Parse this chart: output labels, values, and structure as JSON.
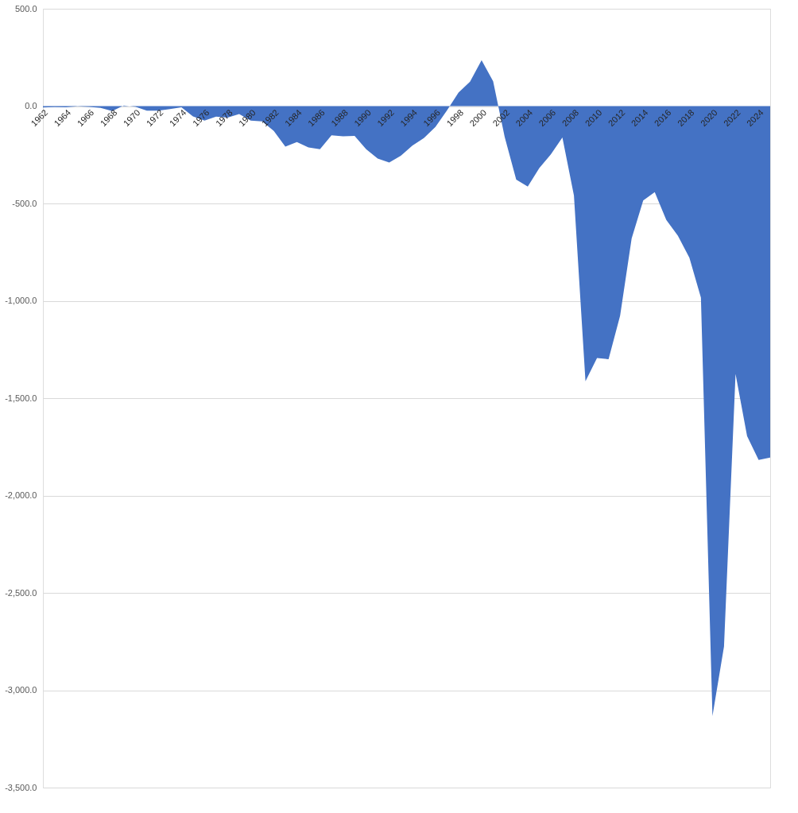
{
  "chart_data": {
    "type": "area",
    "categories": [
      "1962",
      null,
      "1964",
      null,
      "1966",
      null,
      "1968",
      null,
      "1970",
      null,
      "1972",
      null,
      "1974",
      null,
      "1976",
      null,
      "1978",
      null,
      "1980",
      null,
      "1982",
      null,
      "1984",
      null,
      "1986",
      null,
      "1988",
      null,
      "1990",
      null,
      "1992",
      null,
      "1994",
      null,
      "1996",
      null,
      "1998",
      null,
      "2000",
      null,
      "2002",
      null,
      "2004",
      null,
      "2006",
      null,
      "2008",
      null,
      "2010",
      null,
      "2012",
      null,
      "2014",
      null,
      "2016",
      null,
      "2018",
      null,
      "2020",
      null,
      "2022",
      null,
      "2024",
      null
    ],
    "series": [
      {
        "color": "#4472c4",
        "values": [
          -7,
          -5,
          -6,
          -1,
          -4,
          -9,
          -25,
          3,
          -3,
          -23,
          -23,
          -15,
          -6,
          -53,
          -74,
          -54,
          -59,
          -41,
          -74,
          -79,
          -128,
          -208,
          -185,
          -212,
          -221,
          -150,
          -155,
          -153,
          -221,
          -269,
          -290,
          -255,
          -203,
          -164,
          -107,
          -22,
          69,
          126,
          236,
          128,
          -158,
          -378,
          -413,
          -318,
          -248,
          -161,
          -459,
          -1413,
          -1294,
          -1300,
          -1077,
          -680,
          -485,
          -442,
          -585,
          -665,
          -779,
          -984,
          -3133,
          -2775,
          -1376,
          -1695,
          -1817,
          -1805
        ]
      }
    ],
    "ylim": [
      -3500,
      500
    ],
    "yticks": [
      {
        "value": 500,
        "label": "500.0"
      },
      {
        "value": 0,
        "label": "0.0"
      },
      {
        "value": -500,
        "label": "-500.0"
      },
      {
        "value": -1000,
        "label": "-1,000.0"
      },
      {
        "value": -1500,
        "label": "-1,500.0"
      },
      {
        "value": -2000,
        "label": "-2,000.0"
      },
      {
        "value": -2500,
        "label": "-2,500.0"
      },
      {
        "value": -3000,
        "label": "-3,000.0"
      },
      {
        "value": -3500,
        "label": "-3,500.0"
      }
    ],
    "grid": "y"
  }
}
